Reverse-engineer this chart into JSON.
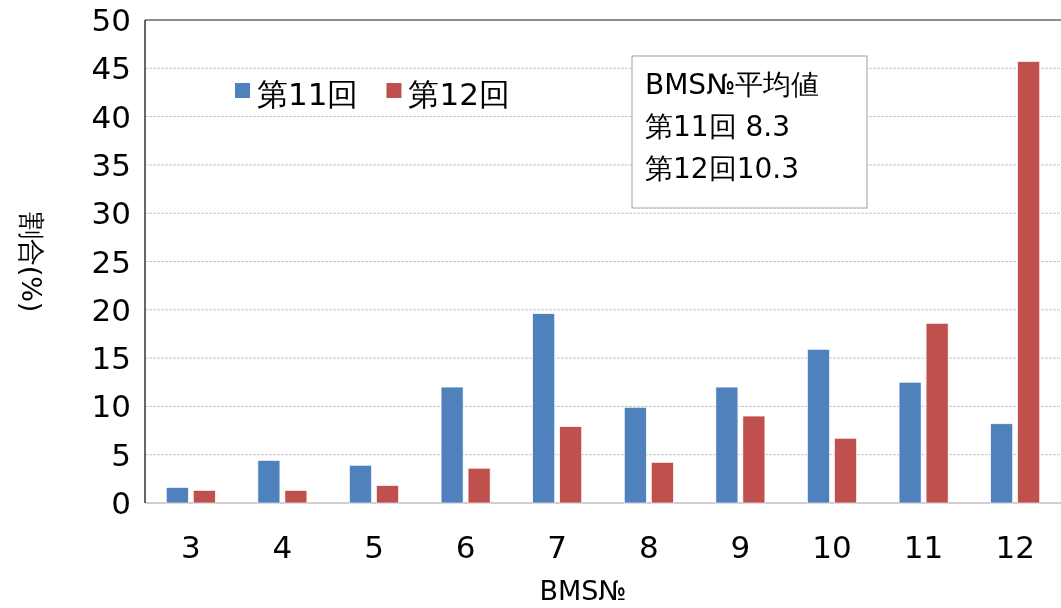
{
  "chart_data": {
    "type": "bar",
    "xlabel": "BMS№",
    "ylabel": "割合(%)",
    "categories": [
      "3",
      "4",
      "5",
      "6",
      "7",
      "8",
      "9",
      "10",
      "11",
      "12"
    ],
    "series": [
      {
        "name": "第11回",
        "color": "#4f81bd",
        "values": [
          1.6,
          4.4,
          3.9,
          12.0,
          19.6,
          9.9,
          12.0,
          15.9,
          12.5,
          8.2
        ]
      },
      {
        "name": "第12回",
        "color": "#c0504d",
        "values": [
          1.3,
          1.3,
          1.8,
          3.6,
          7.9,
          4.2,
          9.0,
          6.7,
          18.6,
          45.7
        ]
      }
    ],
    "ylim": [
      0,
      50
    ],
    "yticks": [
      0,
      5,
      10,
      15,
      20,
      25,
      30,
      35,
      40,
      45,
      50
    ],
    "grid": "y",
    "legend": "top left",
    "annotations": [
      "BMS№平均値",
      "第11回 8.3",
      "第12回10.3"
    ]
  }
}
